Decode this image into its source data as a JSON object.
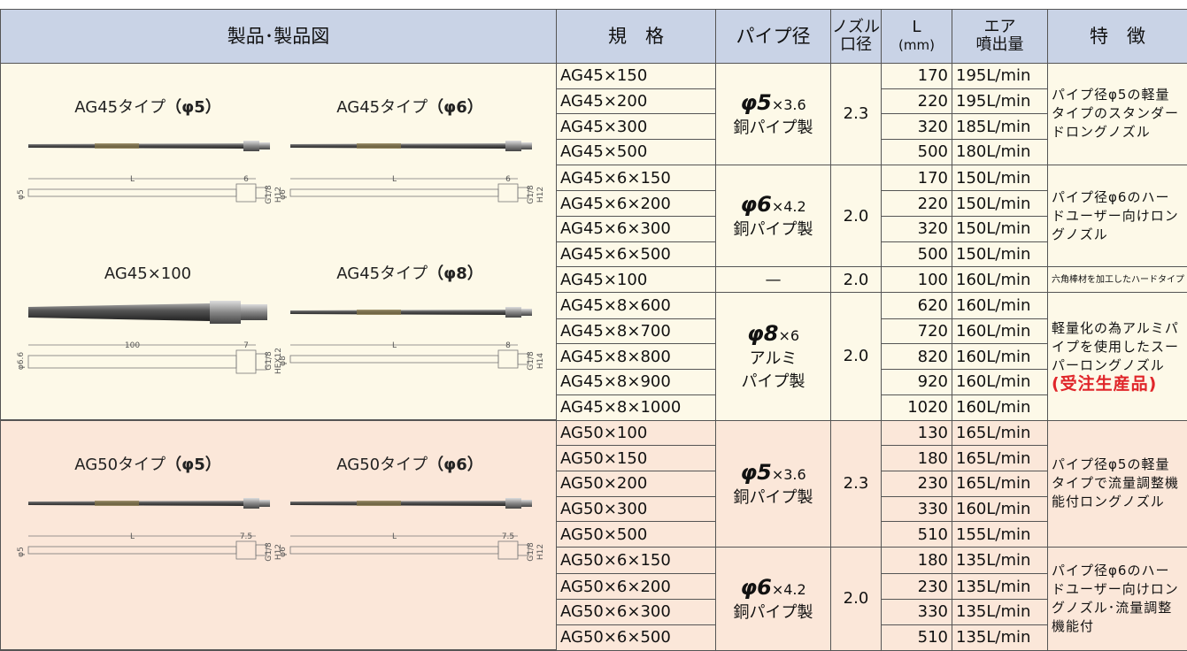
{
  "header": {
    "product": "製品･製品図",
    "model": "規　格",
    "pipe": "パイプ径",
    "nozzle": [
      "ノズル",
      "口径"
    ],
    "length": [
      "L",
      "(mm)"
    ],
    "air": [
      "エア",
      "噴出量"
    ],
    "feature": "特　徴"
  },
  "sections": [
    {
      "products": [
        {
          "label": "AG45タイプ",
          "spec": "（φ5）",
          "dims": [
            "L",
            "6",
            "φ5",
            "G1/8",
            "H12"
          ]
        },
        {
          "label": "AG45タイプ",
          "spec": "（φ6）",
          "dims": [
            "L",
            "6",
            "φ6",
            "G1/8",
            "H12"
          ]
        },
        {
          "label": "AG45×100",
          "dims": [
            "100",
            "7",
            "φ6.6",
            "G1/8",
            "HEX12"
          ]
        },
        {
          "label": "AG45タイプ",
          "spec": "（φ8）",
          "dims": [
            "L",
            "8",
            "φ8",
            "G1/8",
            "H14"
          ]
        }
      ],
      "groups": [
        {
          "pipe": {
            "size": "φ5",
            "detail": "×3.6",
            "material": [
              "銅パイプ製"
            ]
          },
          "nozzle": "2.3",
          "feature": "パイプ径φ5の軽量タイプのスタンダードロングノズル",
          "rows": [
            {
              "model": "AG45×150",
              "L": 170,
              "air": "195L/min"
            },
            {
              "model": "AG45×200",
              "L": 220,
              "air": "195L/min"
            },
            {
              "model": "AG45×300",
              "L": 320,
              "air": "185L/min"
            },
            {
              "model": "AG45×500",
              "L": 500,
              "air": "180L/min"
            }
          ]
        },
        {
          "pipe": {
            "size": "φ6",
            "detail": "×4.2",
            "material": [
              "銅パイプ製"
            ]
          },
          "nozzle": "2.0",
          "feature": "パイプ径φ6のハードユーザー向けロングノズル",
          "rows": [
            {
              "model": "AG45×6×150",
              "L": 170,
              "air": "150L/min"
            },
            {
              "model": "AG45×6×200",
              "L": 220,
              "air": "150L/min"
            },
            {
              "model": "AG45×6×300",
              "L": 320,
              "air": "150L/min"
            },
            {
              "model": "AG45×6×500",
              "L": 500,
              "air": "150L/min"
            }
          ]
        },
        {
          "pipe": {
            "size": "—"
          },
          "nozzle": "2.0",
          "feature_small": "六角棒材を加工したハードタイプ",
          "rows": [
            {
              "model": "AG45×100",
              "L": 100,
              "air": "160L/min"
            }
          ]
        },
        {
          "pipe": {
            "size": "φ8",
            "detail": "×6",
            "material": [
              "アルミ",
              "パイプ製"
            ]
          },
          "nozzle": "2.0",
          "feature": "軽量化の為アルミパイプを使用したスーパーロングノズル",
          "note": "(受注生産品)",
          "rows": [
            {
              "model": "AG45×8×600",
              "L": 620,
              "air": "160L/min"
            },
            {
              "model": "AG45×8×700",
              "L": 720,
              "air": "160L/min"
            },
            {
              "model": "AG45×8×800",
              "L": 820,
              "air": "160L/min"
            },
            {
              "model": "AG45×8×900",
              "L": 920,
              "air": "160L/min"
            },
            {
              "model": "AG45×8×1000",
              "L": 1020,
              "air": "160L/min"
            }
          ]
        }
      ]
    },
    {
      "products": [
        {
          "label": "AG50タイプ",
          "spec": "（φ5）",
          "dims": [
            "L",
            "7.5",
            "φ5",
            "G1/8",
            "H12"
          ]
        },
        {
          "label": "AG50タイプ",
          "spec": "（φ6）",
          "dims": [
            "L",
            "7.5",
            "φ6",
            "G1/8",
            "H12"
          ]
        }
      ],
      "groups": [
        {
          "pipe": {
            "size": "φ5",
            "detail": "×3.6",
            "material": [
              "銅パイプ製"
            ]
          },
          "nozzle": "2.3",
          "feature": "パイプ径φ5の軽量タイプで流量調整機能付ロングノズル",
          "rows": [
            {
              "model": "AG50×100",
              "L": 130,
              "air": "165L/min"
            },
            {
              "model": "AG50×150",
              "L": 180,
              "air": "165L/min"
            },
            {
              "model": "AG50×200",
              "L": 230,
              "air": "165L/min"
            },
            {
              "model": "AG50×300",
              "L": 330,
              "air": "160L/min"
            },
            {
              "model": "AG50×500",
              "L": 510,
              "air": "155L/min"
            }
          ]
        },
        {
          "pipe": {
            "size": "φ6",
            "detail": "×4.2",
            "material": [
              "銅パイプ製"
            ]
          },
          "nozzle": "2.0",
          "feature": "パイプ径φ6のハードユーザー向けロングノズル･流量調整機能付",
          "rows": [
            {
              "model": "AG50×6×150",
              "L": 180,
              "air": "135L/min"
            },
            {
              "model": "AG50×6×200",
              "L": 230,
              "air": "135L/min"
            },
            {
              "model": "AG50×6×300",
              "L": 330,
              "air": "135L/min"
            },
            {
              "model": "AG50×6×500",
              "L": 510,
              "air": "135L/min"
            }
          ]
        }
      ]
    }
  ]
}
